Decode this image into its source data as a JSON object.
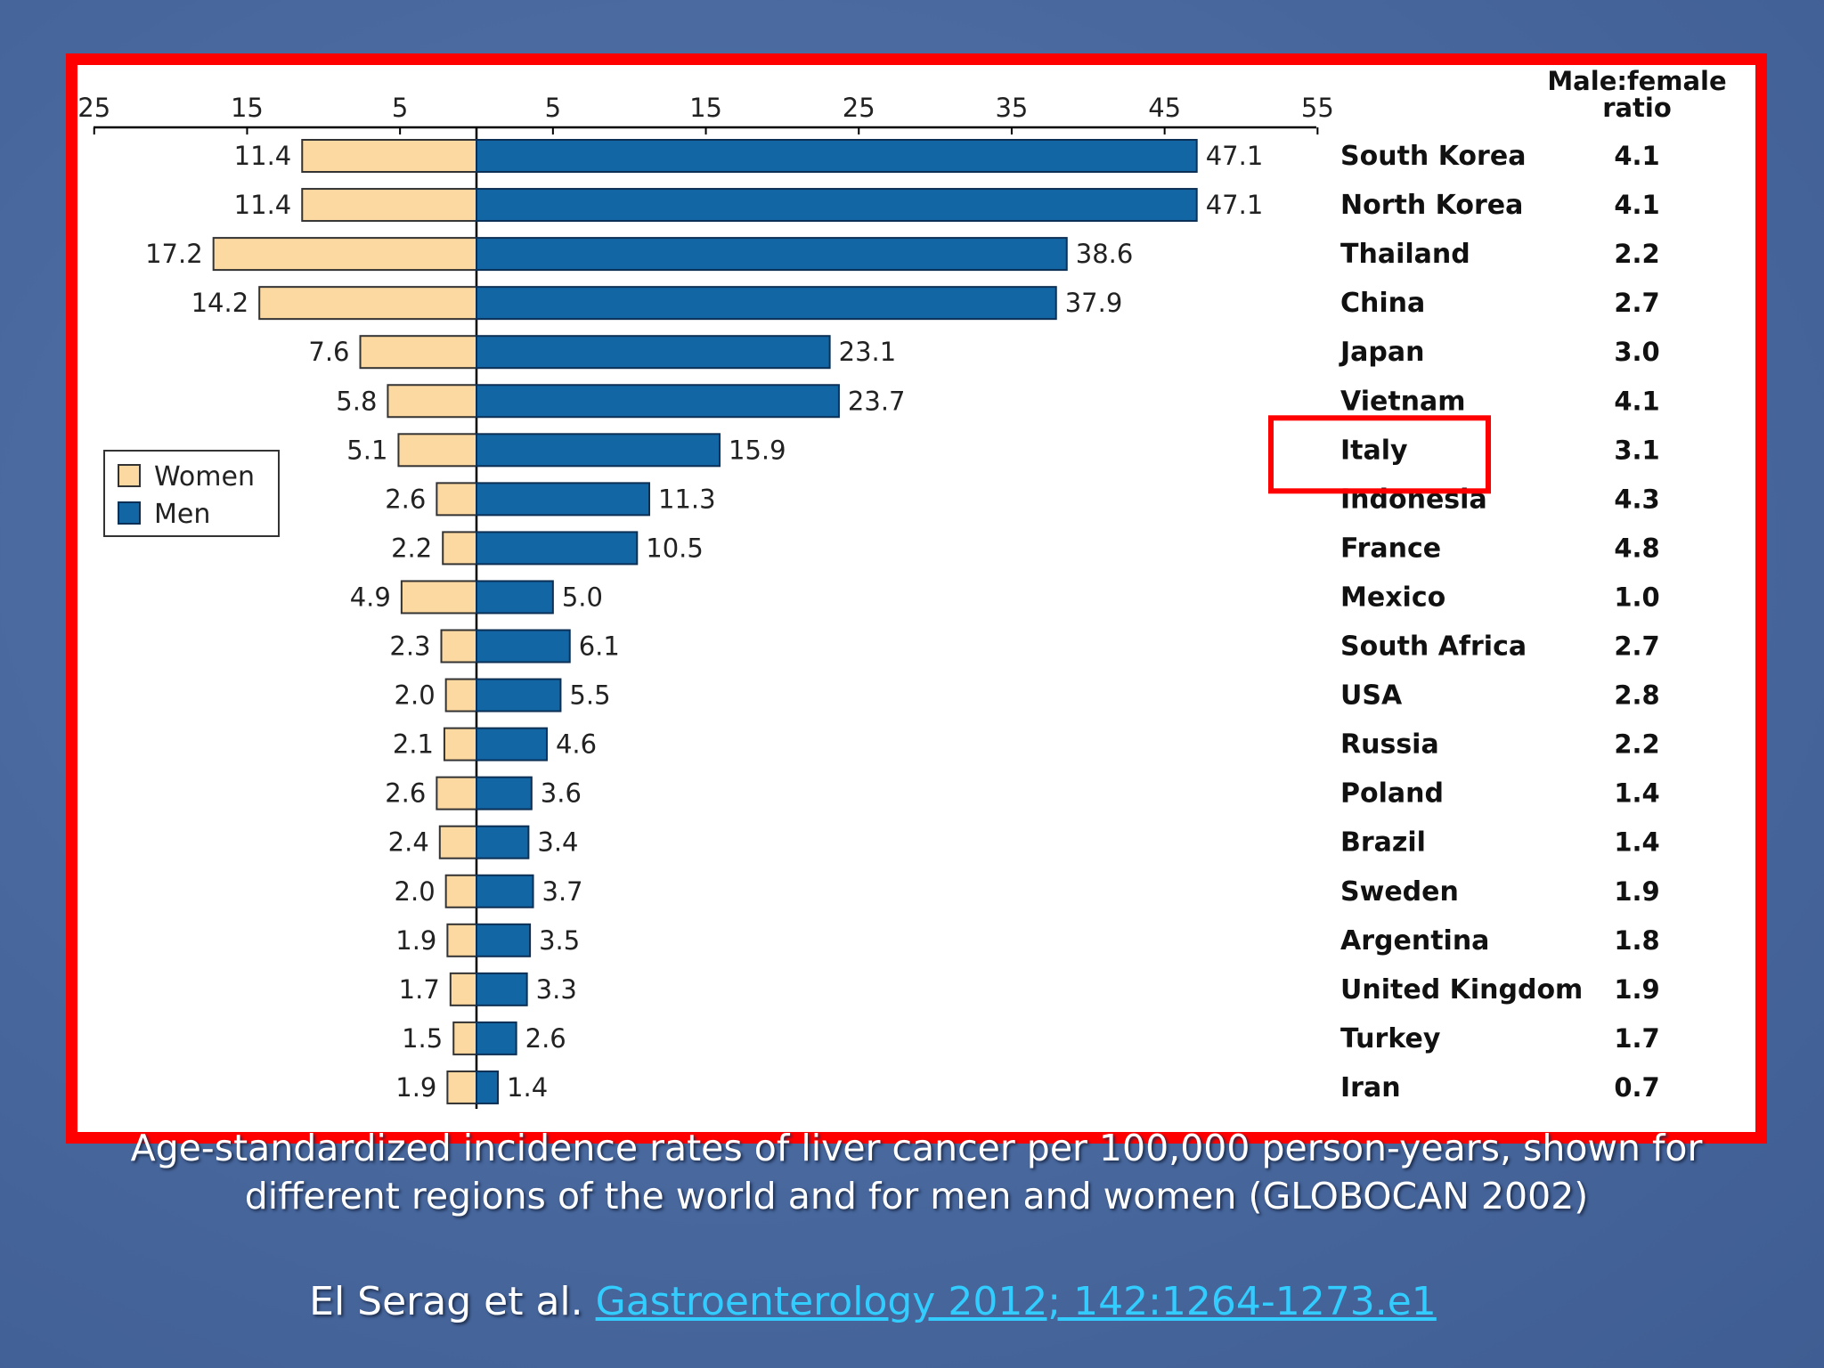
{
  "slide": {
    "caption_line1": "Age-standardized incidence rates of liver cancer per 100,000 person-years, shown for",
    "caption_line2": "different regions of the world and for men and women (GLOBOCAN 2002)",
    "citation_prefix": "El Serag et al. ",
    "citation_link": "Gastroenterology 2012; 142:1264-1273.e1",
    "colors": {
      "background": "#4a6aa0",
      "frame": "#ff0000",
      "link": "#33ccff"
    }
  },
  "chart_data": {
    "type": "bar",
    "orientation": "horizontal-back-to-back",
    "title": "",
    "ratio_header": [
      "Male:female",
      "ratio"
    ],
    "axis_ticks": [
      "25",
      "15",
      "5",
      "5",
      "15",
      "25",
      "35",
      "45",
      "55"
    ],
    "xlim_women": [
      0,
      25
    ],
    "xlim_men": [
      0,
      55
    ],
    "categories": [
      "South Korea",
      "North Korea",
      "Thailand",
      "China",
      "Japan",
      "Vietnam",
      "Italy",
      "Indonesia",
      "France",
      "Mexico",
      "South Africa",
      "USA",
      "Russia",
      "Poland",
      "Brazil",
      "Sweden",
      "Argentina",
      "United Kingdom",
      "Turkey",
      "Iran"
    ],
    "series": [
      {
        "name": "Women",
        "color": "#fcd9a0",
        "values": [
          11.4,
          11.4,
          17.2,
          14.2,
          7.6,
          5.8,
          5.1,
          2.6,
          2.2,
          4.9,
          2.3,
          2.0,
          2.1,
          2.6,
          2.4,
          2.0,
          1.9,
          1.7,
          1.5,
          1.9
        ],
        "labels": [
          "11.4",
          "11.4",
          "17.2",
          "14.2",
          "7.6",
          "5.8",
          "5.1",
          "2.6",
          "2.2",
          "4.9",
          "2.3",
          "2.0",
          "2.1",
          "2.6",
          "2.4",
          "2.0",
          "1.9",
          "1.7",
          "1.5",
          "1.9"
        ]
      },
      {
        "name": "Men",
        "color": "#1366a4",
        "values": [
          47.1,
          47.1,
          38.6,
          37.9,
          23.1,
          23.7,
          15.9,
          11.3,
          10.5,
          5.0,
          6.1,
          5.5,
          4.6,
          3.6,
          3.4,
          3.7,
          3.5,
          3.3,
          2.6,
          1.4
        ],
        "labels": [
          "47.1",
          "47.1",
          "38.6",
          "37.9",
          "23.1",
          "23.7",
          "15.9",
          "11.3",
          "10.5",
          "5.0",
          "6.1",
          "5.5",
          "4.6",
          "3.6",
          "3.4",
          "3.7",
          "3.5",
          "3.3",
          "2.6",
          "1.4"
        ]
      }
    ],
    "ratios": [
      "4.1",
      "4.1",
      "2.2",
      "2.7",
      "3.0",
      "4.1",
      "3.1",
      "4.3",
      "4.8",
      "1.0",
      "2.7",
      "2.8",
      "2.2",
      "1.4",
      "1.4",
      "1.9",
      "1.8",
      "1.9",
      "1.7",
      "0.7"
    ],
    "legend": {
      "position": "left",
      "entries": [
        "Women",
        "Men"
      ]
    },
    "highlight": "Italy",
    "grid": false
  }
}
